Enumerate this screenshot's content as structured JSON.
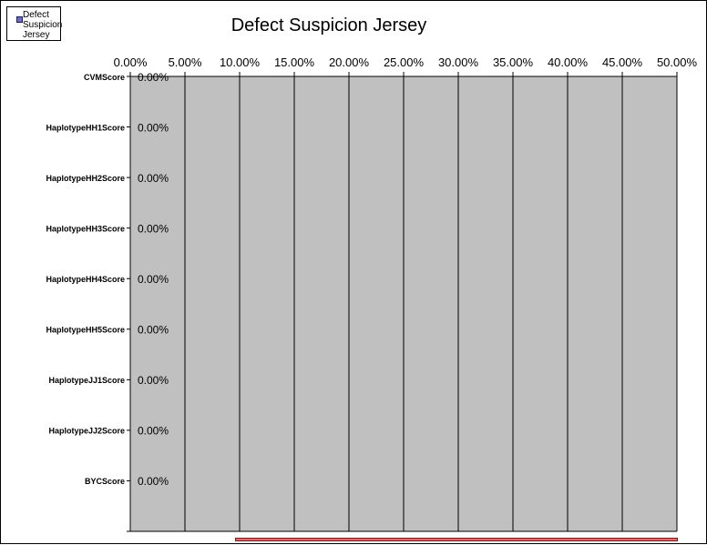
{
  "chart_data": {
    "type": "bar",
    "orientation": "horizontal",
    "title": "Defect Suspicion Jersey",
    "xlabel": "",
    "ylabel": "",
    "xlim": [
      0,
      0.5
    ],
    "x_tick_labels": [
      "0.00%",
      "5.00%",
      "10.00%",
      "15.00%",
      "20.00%",
      "25.00%",
      "30.00%",
      "35.00%",
      "40.00%",
      "45.00%",
      "50.00%"
    ],
    "x_axis_position": "top",
    "categories": [
      "CVMScore",
      "HaplotypeHH1Score",
      "HaplotypeHH2Score",
      "HaplotypeHH3Score",
      "HaplotypeHH4Score",
      "HaplotypeHH5Score",
      "HaplotypeJJ1Score",
      "HaplotypeJJ2Score",
      "BYCScore"
    ],
    "series": [
      {
        "name": "Defect Suspicion Jersey",
        "values": [
          0,
          0,
          0,
          0,
          0,
          0,
          0,
          0,
          0
        ],
        "labels": [
          "0.00%",
          "0.00%",
          "0.00%",
          "0.00%",
          "0.00%",
          "0.00%",
          "0.00%",
          "0.00%",
          "0.00%"
        ]
      }
    ],
    "legend_placement": "top-left",
    "grid": "vertical",
    "colors": {
      "plot_background": "#c0c0c0",
      "series": "#6d6db8",
      "gridline": "#000000",
      "scrollbar": "#e06a6a"
    }
  }
}
